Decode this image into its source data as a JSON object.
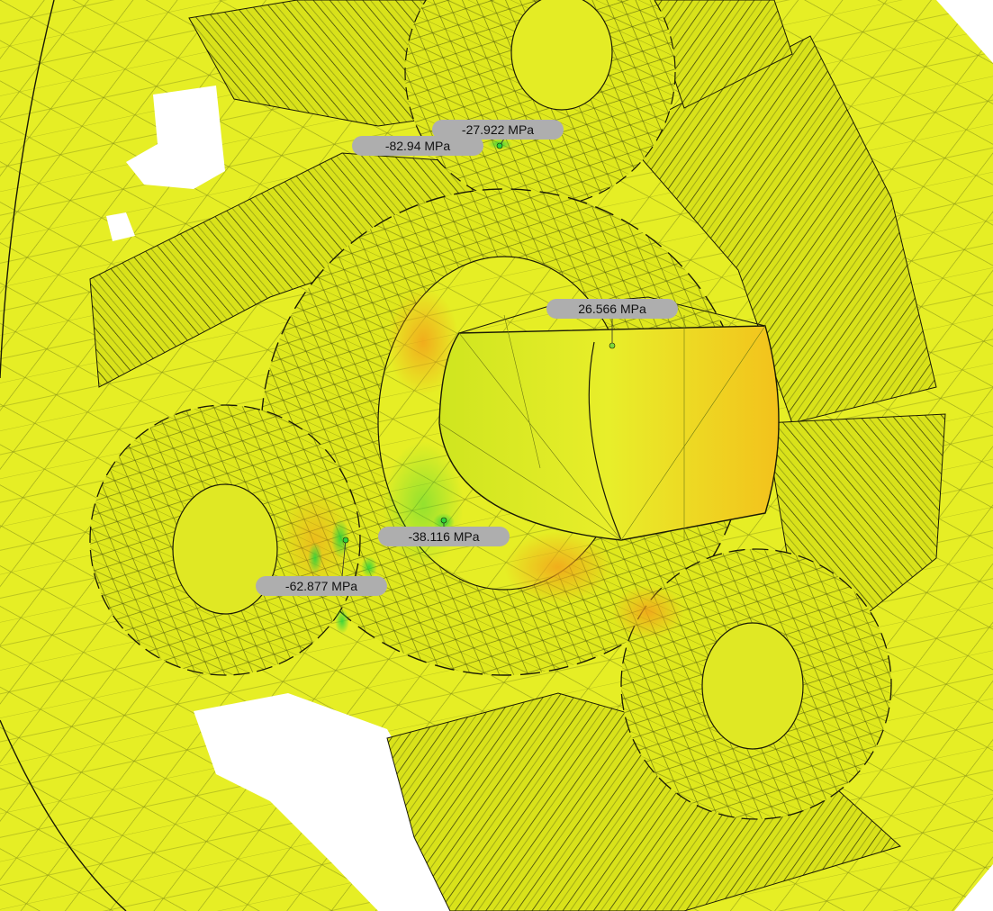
{
  "viewport": {
    "content": "FEA stress result view of planetary helical gear set (tetrahedral mesh, stress contour)"
  },
  "colors": {
    "background": "#ffffff",
    "mesh_fill": "#e3ec1f",
    "mesh_line": "#556010",
    "edge": "#1a1a06",
    "stress_high": "#f2a21a",
    "stress_low": "#2fd23a",
    "label_bg": "#aeaeae",
    "label_text": "#111111"
  },
  "probes": [
    {
      "id": "probe-1",
      "value": "-27.922 MPa"
    },
    {
      "id": "probe-2",
      "value": "-82.94 MPa"
    },
    {
      "id": "probe-3",
      "value": "26.566 MPa"
    },
    {
      "id": "probe-4",
      "value": "-38.116 MPa"
    },
    {
      "id": "probe-5",
      "value": "-62.877 MPa"
    }
  ],
  "icons": [
    "probe-marker-icon"
  ]
}
